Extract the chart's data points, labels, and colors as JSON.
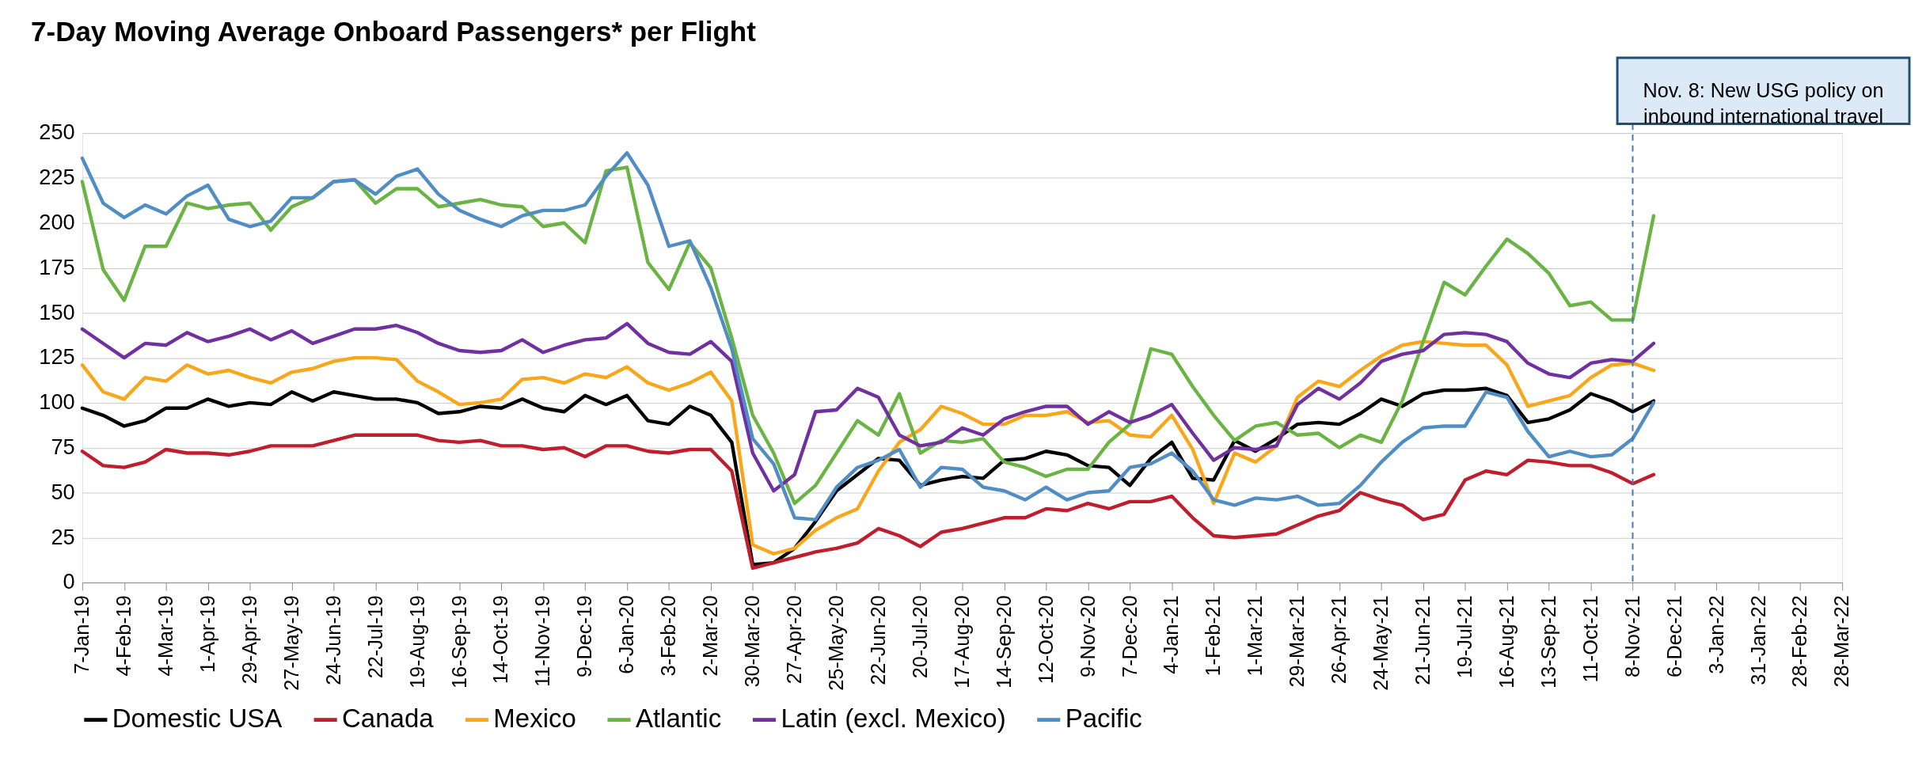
{
  "chart_data": {
    "type": "line",
    "title": "7-Day Moving Average Onboard Passengers* per Flight",
    "x": [
      "2019-01-07",
      "2019-01-21",
      "2019-02-04",
      "2019-02-18",
      "2019-03-04",
      "2019-03-18",
      "2019-04-01",
      "2019-04-15",
      "2019-04-29",
      "2019-05-13",
      "2019-05-27",
      "2019-06-10",
      "2019-06-24",
      "2019-07-08",
      "2019-07-22",
      "2019-08-05",
      "2019-08-19",
      "2019-09-02",
      "2019-09-16",
      "2019-09-30",
      "2019-10-14",
      "2019-10-28",
      "2019-11-11",
      "2019-11-25",
      "2019-12-09",
      "2019-12-23",
      "2020-01-06",
      "2020-01-20",
      "2020-02-03",
      "2020-02-17",
      "2020-03-02",
      "2020-03-16",
      "2020-03-30",
      "2020-04-13",
      "2020-04-27",
      "2020-05-11",
      "2020-05-25",
      "2020-06-08",
      "2020-06-22",
      "2020-07-06",
      "2020-07-20",
      "2020-08-03",
      "2020-08-17",
      "2020-08-31",
      "2020-09-14",
      "2020-09-28",
      "2020-10-12",
      "2020-10-26",
      "2020-11-09",
      "2020-11-23",
      "2020-12-07",
      "2020-12-21",
      "2021-01-04",
      "2021-01-18",
      "2021-02-01",
      "2021-02-15",
      "2021-03-01",
      "2021-03-15",
      "2021-03-29",
      "2021-04-12",
      "2021-04-26",
      "2021-05-10",
      "2021-05-24",
      "2021-06-07",
      "2021-06-21",
      "2021-07-05",
      "2021-07-19",
      "2021-08-02",
      "2021-08-16",
      "2021-08-30",
      "2021-09-13",
      "2021-09-27",
      "2021-10-11",
      "2021-10-25",
      "2021-11-08",
      "2021-11-22"
    ],
    "series": [
      {
        "name": "Domestic USA",
        "color": "#000000",
        "values": [
          97,
          93,
          87,
          90,
          97,
          97,
          102,
          98,
          100,
          99,
          106,
          101,
          106,
          104,
          102,
          102,
          100,
          94,
          95,
          98,
          97,
          102,
          97,
          95,
          104,
          99,
          104,
          90,
          88,
          98,
          93,
          78,
          10,
          11,
          19,
          34,
          51,
          60,
          69,
          68,
          54,
          57,
          59,
          58,
          68,
          69,
          73,
          71,
          65,
          64,
          54,
          69,
          78,
          58,
          57,
          79,
          73,
          80,
          88,
          89,
          88,
          94,
          102,
          98,
          105,
          107,
          107,
          108,
          104,
          89,
          91,
          96,
          105,
          101,
          95,
          101
        ]
      },
      {
        "name": "Canada",
        "color": "#be1e2d",
        "values": [
          73,
          65,
          64,
          67,
          74,
          72,
          72,
          71,
          73,
          76,
          76,
          76,
          79,
          82,
          82,
          82,
          82,
          79,
          78,
          79,
          76,
          76,
          74,
          75,
          70,
          76,
          76,
          73,
          72,
          74,
          74,
          62,
          8,
          11,
          14,
          17,
          19,
          22,
          30,
          26,
          20,
          28,
          30,
          33,
          36,
          36,
          41,
          40,
          44,
          41,
          45,
          45,
          48,
          36,
          26,
          25,
          26,
          27,
          32,
          37,
          40,
          50,
          46,
          43,
          35,
          38,
          57,
          62,
          60,
          68,
          67,
          65,
          65,
          61,
          55,
          60
        ]
      },
      {
        "name": "Mexico",
        "color": "#f9a61a",
        "values": [
          121,
          106,
          102,
          114,
          112,
          121,
          116,
          118,
          114,
          111,
          117,
          119,
          123,
          125,
          125,
          124,
          112,
          106,
          99,
          100,
          102,
          113,
          114,
          111,
          116,
          114,
          120,
          111,
          107,
          111,
          117,
          101,
          21,
          16,
          19,
          29,
          36,
          41,
          62,
          78,
          85,
          98,
          94,
          88,
          88,
          93,
          93,
          95,
          89,
          90,
          82,
          81,
          93,
          74,
          44,
          72,
          67,
          76,
          103,
          112,
          109,
          118,
          126,
          132,
          134,
          133,
          132,
          132,
          121,
          98,
          101,
          104,
          114,
          121,
          122,
          118
        ]
      },
      {
        "name": "Atlantic",
        "color": "#6ab444",
        "values": [
          223,
          174,
          157,
          187,
          187,
          211,
          208,
          210,
          211,
          196,
          209,
          214,
          223,
          224,
          211,
          219,
          219,
          209,
          211,
          213,
          210,
          209,
          198,
          200,
          189,
          229,
          231,
          178,
          163,
          189,
          175,
          136,
          93,
          72,
          44,
          54,
          72,
          90,
          82,
          105,
          72,
          79,
          78,
          80,
          67,
          64,
          59,
          63,
          63,
          78,
          88,
          130,
          127,
          109,
          93,
          79,
          87,
          89,
          82,
          83,
          75,
          82,
          78,
          101,
          134,
          167,
          160,
          176,
          191,
          183,
          172,
          154,
          156,
          146,
          146,
          204
        ]
      },
      {
        "name": "Latin (excl. Mexico)",
        "color": "#7030a0",
        "values": [
          141,
          133,
          125,
          133,
          132,
          139,
          134,
          137,
          141,
          135,
          140,
          133,
          137,
          141,
          141,
          143,
          139,
          133,
          129,
          128,
          129,
          135,
          128,
          132,
          135,
          136,
          144,
          133,
          128,
          127,
          134,
          123,
          72,
          51,
          60,
          95,
          96,
          108,
          103,
          82,
          76,
          78,
          86,
          82,
          91,
          95,
          98,
          98,
          88,
          95,
          89,
          93,
          99,
          83,
          68,
          75,
          74,
          76,
          99,
          108,
          102,
          111,
          123,
          127,
          129,
          138,
          139,
          138,
          134,
          122,
          116,
          114,
          122,
          124,
          123,
          133
        ]
      },
      {
        "name": "Pacific",
        "color": "#4f8dc4",
        "values": [
          236,
          211,
          203,
          210,
          205,
          215,
          221,
          202,
          198,
          201,
          214,
          214,
          223,
          224,
          216,
          226,
          230,
          216,
          207,
          202,
          198,
          204,
          207,
          207,
          210,
          226,
          239,
          221,
          187,
          190,
          164,
          130,
          80,
          66,
          36,
          35,
          53,
          64,
          68,
          74,
          53,
          64,
          63,
          53,
          51,
          46,
          53,
          46,
          50,
          51,
          64,
          66,
          72,
          62,
          46,
          43,
          47,
          46,
          48,
          43,
          44,
          54,
          67,
          78,
          86,
          87,
          87,
          106,
          103,
          84,
          70,
          73,
          70,
          71,
          80,
          100
        ]
      }
    ],
    "xlim": [
      "2019-01-07",
      "2022-03-28"
    ],
    "xticks": [
      {
        "value": "2019-01-07",
        "label": "7-Jan-19"
      },
      {
        "value": "2019-02-04",
        "label": "4-Feb-19"
      },
      {
        "value": "2019-03-04",
        "label": "4-Mar-19"
      },
      {
        "value": "2019-04-01",
        "label": "1-Apr-19"
      },
      {
        "value": "2019-04-29",
        "label": "29-Apr-19"
      },
      {
        "value": "2019-05-27",
        "label": "27-May-19"
      },
      {
        "value": "2019-06-24",
        "label": "24-Jun-19"
      },
      {
        "value": "2019-07-22",
        "label": "22-Jul-19"
      },
      {
        "value": "2019-08-19",
        "label": "19-Aug-19"
      },
      {
        "value": "2019-09-16",
        "label": "16-Sep-19"
      },
      {
        "value": "2019-10-14",
        "label": "14-Oct-19"
      },
      {
        "value": "2019-11-11",
        "label": "11-Nov-19"
      },
      {
        "value": "2019-12-09",
        "label": "9-Dec-19"
      },
      {
        "value": "2020-01-06",
        "label": "6-Jan-20"
      },
      {
        "value": "2020-02-03",
        "label": "3-Feb-20"
      },
      {
        "value": "2020-03-02",
        "label": "2-Mar-20"
      },
      {
        "value": "2020-03-30",
        "label": "30-Mar-20"
      },
      {
        "value": "2020-04-27",
        "label": "27-Apr-20"
      },
      {
        "value": "2020-05-25",
        "label": "25-May-20"
      },
      {
        "value": "2020-06-22",
        "label": "22-Jun-20"
      },
      {
        "value": "2020-07-20",
        "label": "20-Jul-20"
      },
      {
        "value": "2020-08-17",
        "label": "17-Aug-20"
      },
      {
        "value": "2020-09-14",
        "label": "14-Sep-20"
      },
      {
        "value": "2020-10-12",
        "label": "12-Oct-20"
      },
      {
        "value": "2020-11-09",
        "label": "9-Nov-20"
      },
      {
        "value": "2020-12-07",
        "label": "7-Dec-20"
      },
      {
        "value": "2021-01-04",
        "label": "4-Jan-21"
      },
      {
        "value": "2021-02-01",
        "label": "1-Feb-21"
      },
      {
        "value": "2021-03-01",
        "label": "1-Mar-21"
      },
      {
        "value": "2021-03-29",
        "label": "29-Mar-21"
      },
      {
        "value": "2021-04-26",
        "label": "26-Apr-21"
      },
      {
        "value": "2021-05-24",
        "label": "24-May-21"
      },
      {
        "value": "2021-06-21",
        "label": "21-Jun-21"
      },
      {
        "value": "2021-07-19",
        "label": "19-Jul-21"
      },
      {
        "value": "2021-08-16",
        "label": "16-Aug-21"
      },
      {
        "value": "2021-09-13",
        "label": "13-Sep-21"
      },
      {
        "value": "2021-10-11",
        "label": "11-Oct-21"
      },
      {
        "value": "2021-11-08",
        "label": "8-Nov-21"
      },
      {
        "value": "2021-12-06",
        "label": "6-Dec-21"
      },
      {
        "value": "2022-01-03",
        "label": "3-Jan-22"
      },
      {
        "value": "2022-01-31",
        "label": "31-Jan-22"
      },
      {
        "value": "2022-02-28",
        "label": "28-Feb-22"
      },
      {
        "value": "2022-03-28",
        "label": "28-Mar-22"
      }
    ],
    "ylim": [
      0,
      250
    ],
    "yticks": [
      0,
      25,
      50,
      75,
      100,
      125,
      150,
      175,
      200,
      225,
      250
    ],
    "grid": "y",
    "legend": "bottom",
    "ref_lines": [
      {
        "axis": "x",
        "value": "2021-11-08",
        "label": "Nov. 8: New USG policy on\ninbound international travel",
        "color": "#4472c4",
        "line_style": "dashed"
      }
    ]
  }
}
